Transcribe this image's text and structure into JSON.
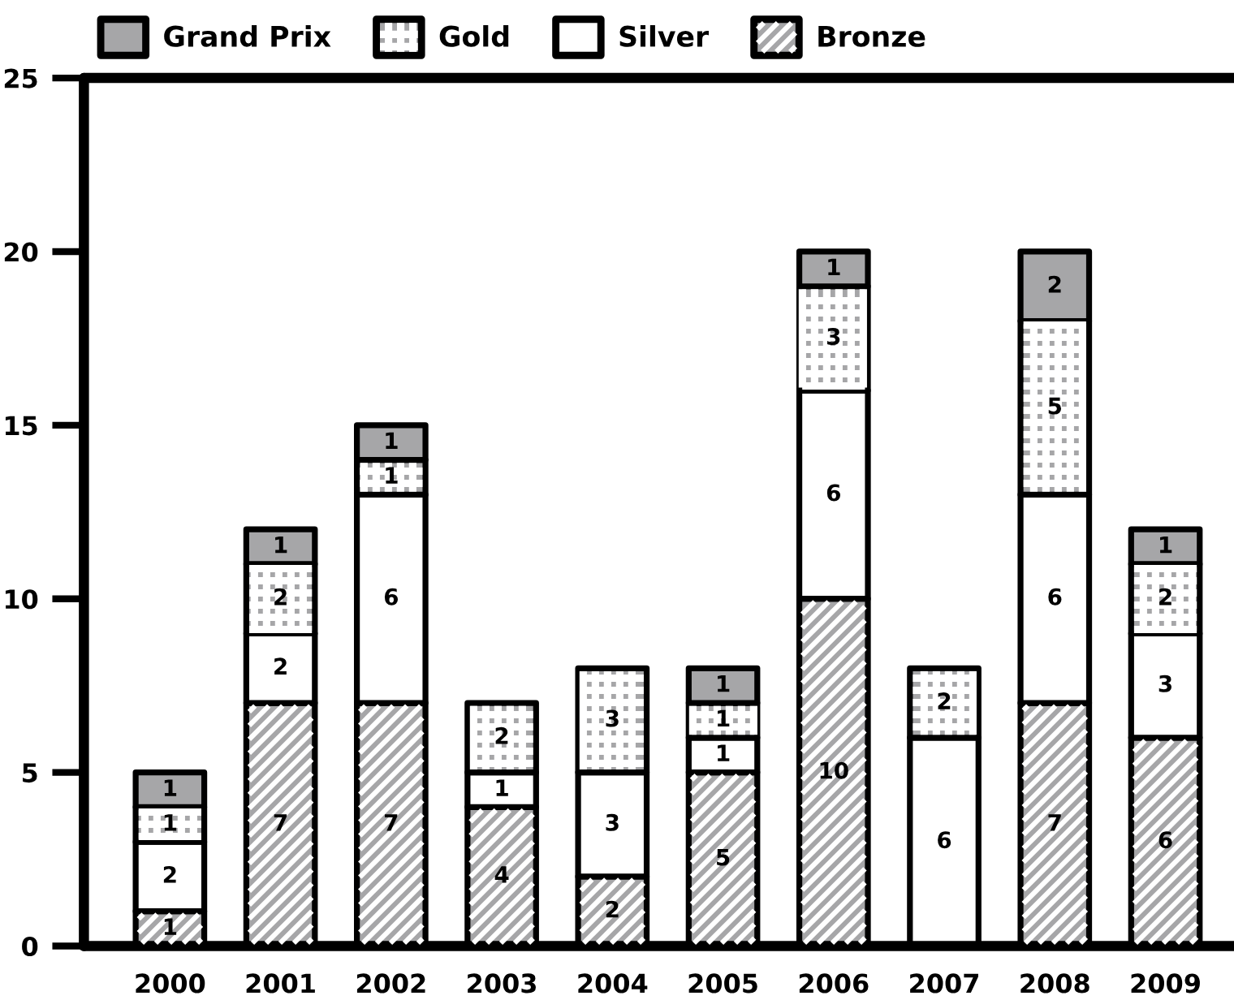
{
  "chart_data": {
    "type": "bar",
    "stacked": true,
    "categories": [
      "2000",
      "2001",
      "2002",
      "2003",
      "2004",
      "2005",
      "2006",
      "2007",
      "2008",
      "2009"
    ],
    "series": [
      {
        "name": "Bronze",
        "color": "#a6a6a8",
        "values": [
          1,
          7,
          7,
          4,
          2,
          5,
          10,
          null,
          7,
          6
        ]
      },
      {
        "name": "Silver",
        "color": "#ffffff",
        "values": [
          2,
          2,
          6,
          1,
          3,
          1,
          6,
          6,
          6,
          3
        ]
      },
      {
        "name": "Gold",
        "color": "#a6a6a8",
        "values": [
          1,
          2,
          1,
          2,
          3,
          1,
          3,
          2,
          5,
          2
        ]
      },
      {
        "name": "Grand Prix",
        "color": "#a6a6a8",
        "values": [
          1,
          1,
          1,
          null,
          null,
          1,
          1,
          null,
          2,
          1
        ]
      }
    ],
    "ylim": [
      0,
      25
    ],
    "yticks": [
      0,
      5,
      10,
      15,
      20,
      25
    ],
    "data_labels": true,
    "grid": false,
    "legend": "top left"
  }
}
